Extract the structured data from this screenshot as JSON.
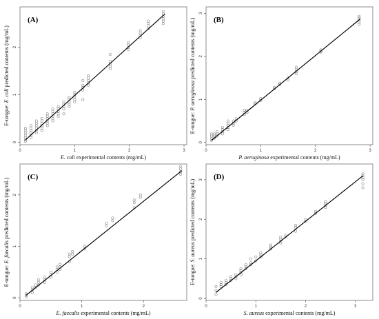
{
  "chart_data": [
    {
      "type": "scatter",
      "panel_label": "(A)",
      "xlabel_italic": "E. coli",
      "xlabel_rest": " experimental contents (mg/mL)",
      "ylabel_pre": "E-tongue: ",
      "ylabel_italic": "E. coli",
      "ylabel_rest": " predicted contents (mg/mL)",
      "xlim": [
        0,
        3.05
      ],
      "ylim": [
        -0.05,
        2.85
      ],
      "xticks": [
        0,
        1,
        2,
        3
      ],
      "yticks": [
        0,
        1,
        2
      ],
      "fit_line": {
        "x": [
          0.1,
          2.65
        ],
        "y": [
          0.05,
          2.7
        ]
      },
      "points": [
        [
          0.1,
          0.02
        ],
        [
          0.1,
          0.05
        ],
        [
          0.1,
          0.1
        ],
        [
          0.1,
          0.15
        ],
        [
          0.1,
          0.2
        ],
        [
          0.1,
          0.25
        ],
        [
          0.1,
          0.3
        ],
        [
          0.2,
          0.1
        ],
        [
          0.2,
          0.15
        ],
        [
          0.2,
          0.2
        ],
        [
          0.2,
          0.25
        ],
        [
          0.2,
          0.3
        ],
        [
          0.2,
          0.35
        ],
        [
          0.3,
          0.2
        ],
        [
          0.3,
          0.25
        ],
        [
          0.3,
          0.3
        ],
        [
          0.3,
          0.35
        ],
        [
          0.3,
          0.4
        ],
        [
          0.3,
          0.45
        ],
        [
          0.4,
          0.25
        ],
        [
          0.4,
          0.3
        ],
        [
          0.4,
          0.35
        ],
        [
          0.4,
          0.4
        ],
        [
          0.4,
          0.45
        ],
        [
          0.4,
          0.5
        ],
        [
          0.5,
          0.35
        ],
        [
          0.5,
          0.4
        ],
        [
          0.5,
          0.45
        ],
        [
          0.5,
          0.5
        ],
        [
          0.5,
          0.55
        ],
        [
          0.5,
          0.6
        ],
        [
          0.6,
          0.45
        ],
        [
          0.6,
          0.5
        ],
        [
          0.6,
          0.55
        ],
        [
          0.6,
          0.6
        ],
        [
          0.6,
          0.65
        ],
        [
          0.6,
          0.7
        ],
        [
          0.7,
          0.55
        ],
        [
          0.7,
          0.6
        ],
        [
          0.7,
          0.65
        ],
        [
          0.7,
          0.7
        ],
        [
          0.7,
          0.75
        ],
        [
          0.8,
          0.6
        ],
        [
          0.8,
          0.7
        ],
        [
          0.8,
          0.75
        ],
        [
          0.8,
          0.8
        ],
        [
          0.8,
          0.85
        ],
        [
          0.9,
          0.75
        ],
        [
          0.9,
          0.8
        ],
        [
          0.9,
          0.85
        ],
        [
          0.9,
          0.9
        ],
        [
          0.9,
          0.95
        ],
        [
          1.0,
          0.85
        ],
        [
          1.0,
          0.9
        ],
        [
          1.0,
          0.95
        ],
        [
          1.0,
          1.0
        ],
        [
          1.0,
          1.05
        ],
        [
          1.15,
          0.9
        ],
        [
          1.15,
          1.1
        ],
        [
          1.15,
          1.15
        ],
        [
          1.15,
          1.2
        ],
        [
          1.15,
          1.3
        ],
        [
          1.25,
          1.2
        ],
        [
          1.25,
          1.25
        ],
        [
          1.25,
          1.3
        ],
        [
          1.25,
          1.35
        ],
        [
          1.25,
          1.4
        ],
        [
          1.65,
          1.55
        ],
        [
          1.65,
          1.6
        ],
        [
          1.65,
          1.65
        ],
        [
          1.65,
          1.7
        ],
        [
          1.65,
          1.85
        ],
        [
          1.98,
          1.95
        ],
        [
          1.98,
          2.0
        ],
        [
          1.98,
          2.05
        ],
        [
          1.98,
          2.1
        ],
        [
          2.2,
          2.2
        ],
        [
          2.2,
          2.25
        ],
        [
          2.2,
          2.3
        ],
        [
          2.2,
          2.35
        ],
        [
          2.35,
          2.4
        ],
        [
          2.35,
          2.45
        ],
        [
          2.35,
          2.5
        ],
        [
          2.35,
          2.55
        ],
        [
          2.62,
          2.5
        ],
        [
          2.62,
          2.55
        ],
        [
          2.62,
          2.6
        ],
        [
          2.62,
          2.65
        ],
        [
          2.62,
          2.7
        ],
        [
          2.62,
          2.75
        ]
      ]
    },
    {
      "type": "scatter",
      "panel_label": "(B)",
      "xlabel_italic": "P. aeruginosa",
      "xlabel_rest": " experimental contents (mg/mL)",
      "ylabel_pre": "E-tongue: ",
      "ylabel_italic": "P. aeruginosa",
      "ylabel_rest": " predicted contents (mg/mL)",
      "xlim": [
        0,
        3.05
      ],
      "ylim": [
        -0.05,
        3.15
      ],
      "xticks": [
        0,
        1,
        2,
        3
      ],
      "yticks": [
        0,
        1,
        2,
        3
      ],
      "fit_line": {
        "x": [
          0.1,
          2.82
        ],
        "y": [
          0.05,
          2.87
        ]
      },
      "points": [
        [
          0.1,
          0.05
        ],
        [
          0.1,
          0.1
        ],
        [
          0.1,
          0.15
        ],
        [
          0.1,
          0.2
        ],
        [
          0.15,
          0.1
        ],
        [
          0.15,
          0.15
        ],
        [
          0.15,
          0.2
        ],
        [
          0.2,
          0.15
        ],
        [
          0.2,
          0.2
        ],
        [
          0.2,
          0.25
        ],
        [
          0.3,
          0.2
        ],
        [
          0.3,
          0.25
        ],
        [
          0.3,
          0.3
        ],
        [
          0.3,
          0.35
        ],
        [
          0.4,
          0.3
        ],
        [
          0.4,
          0.35
        ],
        [
          0.4,
          0.4
        ],
        [
          0.4,
          0.45
        ],
        [
          0.4,
          0.5
        ],
        [
          0.5,
          0.4
        ],
        [
          0.5,
          0.45
        ],
        [
          0.5,
          0.5
        ],
        [
          0.55,
          0.5
        ],
        [
          0.55,
          0.55
        ],
        [
          0.7,
          0.65
        ],
        [
          0.7,
          0.7
        ],
        [
          0.7,
          0.75
        ],
        [
          0.75,
          0.7
        ],
        [
          0.75,
          0.75
        ],
        [
          0.9,
          0.9
        ],
        [
          0.9,
          0.92
        ],
        [
          1.0,
          0.98
        ],
        [
          1.0,
          1.02
        ],
        [
          1.25,
          1.25
        ],
        [
          1.25,
          1.28
        ],
        [
          1.35,
          1.35
        ],
        [
          1.35,
          1.38
        ],
        [
          1.5,
          1.45
        ],
        [
          1.5,
          1.5
        ],
        [
          1.65,
          1.6
        ],
        [
          1.65,
          1.65
        ],
        [
          1.65,
          1.7
        ],
        [
          1.65,
          1.75
        ],
        [
          2.1,
          2.1
        ],
        [
          2.1,
          2.12
        ],
        [
          2.1,
          2.15
        ],
        [
          2.8,
          2.75
        ],
        [
          2.8,
          2.8
        ],
        [
          2.8,
          2.85
        ],
        [
          2.8,
          2.9
        ],
        [
          2.8,
          2.93
        ]
      ]
    },
    {
      "type": "scatter",
      "panel_label": "(C)",
      "xlabel_italic": "E. faecalis",
      "xlabel_rest": " experimental contents (mg/mL)",
      "ylabel_pre": "E-tongue: ",
      "ylabel_italic": "E. faecalis",
      "ylabel_rest": " predicted contents (mg/mL)",
      "xlim": [
        0,
        2.7
      ],
      "ylim": [
        -0.05,
        2.6
      ],
      "xticks": [
        0,
        1,
        2
      ],
      "yticks": [
        0,
        1,
        2
      ],
      "fit_line": {
        "x": [
          0.1,
          2.62
        ],
        "y": [
          0.05,
          2.47
        ]
      },
      "points": [
        [
          0.1,
          0.02
        ],
        [
          0.1,
          0.05
        ],
        [
          0.1,
          0.08
        ],
        [
          0.2,
          0.1
        ],
        [
          0.2,
          0.15
        ],
        [
          0.2,
          0.2
        ],
        [
          0.25,
          0.2
        ],
        [
          0.25,
          0.25
        ],
        [
          0.3,
          0.25
        ],
        [
          0.3,
          0.3
        ],
        [
          0.3,
          0.35
        ],
        [
          0.4,
          0.3
        ],
        [
          0.4,
          0.35
        ],
        [
          0.4,
          0.4
        ],
        [
          0.5,
          0.4
        ],
        [
          0.5,
          0.45
        ],
        [
          0.5,
          0.5
        ],
        [
          0.6,
          0.5
        ],
        [
          0.6,
          0.55
        ],
        [
          0.6,
          0.6
        ],
        [
          0.65,
          0.55
        ],
        [
          0.65,
          0.6
        ],
        [
          0.65,
          0.65
        ],
        [
          0.8,
          0.7
        ],
        [
          0.8,
          0.8
        ],
        [
          0.8,
          0.85
        ],
        [
          0.85,
          0.85
        ],
        [
          0.85,
          0.9
        ],
        [
          1.05,
          0.95
        ],
        [
          1.05,
          1.0
        ],
        [
          1.4,
          1.4
        ],
        [
          1.4,
          1.45
        ],
        [
          1.5,
          1.5
        ],
        [
          1.5,
          1.55
        ],
        [
          1.85,
          1.75
        ],
        [
          1.85,
          1.85
        ],
        [
          1.85,
          1.9
        ],
        [
          1.95,
          1.95
        ],
        [
          1.95,
          2.0
        ],
        [
          2.6,
          2.4
        ],
        [
          2.6,
          2.45
        ],
        [
          2.6,
          2.5
        ],
        [
          2.6,
          2.55
        ]
      ]
    },
    {
      "type": "scatter",
      "panel_label": "(D)",
      "xlabel_italic": "S. aureus",
      "xlabel_rest": " experimental contents (mg/mL)",
      "ylabel_pre": "E-tongue: ",
      "ylabel_italic": "S. aureus",
      "ylabel_rest": " predicted contents (mg/mL)",
      "xlim": [
        0,
        3.35
      ],
      "ylim": [
        -0.05,
        3.4
      ],
      "xticks": [
        0,
        1,
        2,
        3
      ],
      "yticks": [
        0,
        1,
        2,
        3
      ],
      "fit_line": {
        "x": [
          0.2,
          3.15
        ],
        "y": [
          0.15,
          3.1
        ]
      },
      "points": [
        [
          0.2,
          0.1
        ],
        [
          0.2,
          0.2
        ],
        [
          0.2,
          0.3
        ],
        [
          0.3,
          0.3
        ],
        [
          0.3,
          0.35
        ],
        [
          0.3,
          0.4
        ],
        [
          0.4,
          0.35
        ],
        [
          0.4,
          0.4
        ],
        [
          0.4,
          0.45
        ],
        [
          0.5,
          0.45
        ],
        [
          0.5,
          0.5
        ],
        [
          0.5,
          0.55
        ],
        [
          0.6,
          0.5
        ],
        [
          0.6,
          0.55
        ],
        [
          0.6,
          0.6
        ],
        [
          0.7,
          0.6
        ],
        [
          0.7,
          0.65
        ],
        [
          0.7,
          0.7
        ],
        [
          0.7,
          0.75
        ],
        [
          0.8,
          0.75
        ],
        [
          0.8,
          0.8
        ],
        [
          0.8,
          0.85
        ],
        [
          0.9,
          0.85
        ],
        [
          0.9,
          0.9
        ],
        [
          0.9,
          1.0
        ],
        [
          1.0,
          0.95
        ],
        [
          1.0,
          1.05
        ],
        [
          1.1,
          1.05
        ],
        [
          1.1,
          1.1
        ],
        [
          1.1,
          1.15
        ],
        [
          1.3,
          1.25
        ],
        [
          1.3,
          1.3
        ],
        [
          1.3,
          1.35
        ],
        [
          1.5,
          1.4
        ],
        [
          1.5,
          1.45
        ],
        [
          1.5,
          1.5
        ],
        [
          1.5,
          1.55
        ],
        [
          1.6,
          1.55
        ],
        [
          1.6,
          1.6
        ],
        [
          1.8,
          1.7
        ],
        [
          1.8,
          1.8
        ],
        [
          1.8,
          1.85
        ],
        [
          2.0,
          1.95
        ],
        [
          2.0,
          2.0
        ],
        [
          2.2,
          2.15
        ],
        [
          2.2,
          2.2
        ],
        [
          2.4,
          2.3
        ],
        [
          2.4,
          2.35
        ],
        [
          2.4,
          2.4
        ],
        [
          2.4,
          2.45
        ],
        [
          3.15,
          2.8
        ],
        [
          3.15,
          2.9
        ],
        [
          3.15,
          3.0
        ],
        [
          3.15,
          3.05
        ],
        [
          3.15,
          3.1
        ],
        [
          3.15,
          3.15
        ]
      ]
    }
  ]
}
